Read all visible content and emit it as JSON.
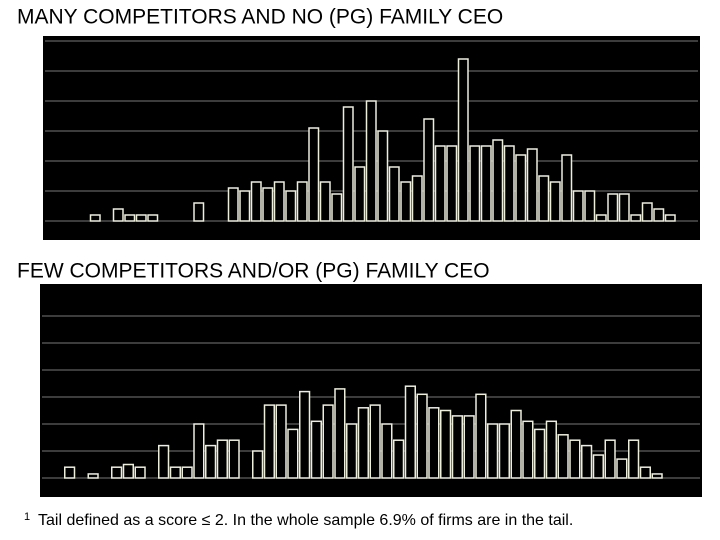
{
  "chart_data": [
    {
      "type": "bar",
      "title": "MANY COMPETITORS AND NO (PG) FAMILY CEO",
      "values": [
        0,
        0,
        0,
        0.2,
        0,
        0.4,
        0.2,
        0.2,
        0.2,
        0,
        0,
        0,
        0.6,
        0,
        0,
        1.1,
        1.0,
        1.3,
        1.1,
        1.3,
        1.0,
        1.3,
        3.1,
        1.3,
        0.9,
        3.8,
        1.8,
        4.0,
        3.0,
        1.8,
        1.3,
        1.5,
        3.4,
        2.5,
        2.5,
        5.4,
        2.5,
        2.5,
        2.7,
        2.5,
        2.2,
        2.4,
        1.5,
        1.3,
        2.2,
        1.0,
        1.0,
        0.2,
        0.9,
        0.9,
        0.2,
        0.6,
        0.4,
        0.2
      ],
      "color": "#eeeedd",
      "ylim": [
        0,
        6
      ],
      "yticks": [
        0,
        1,
        2,
        3,
        4,
        5,
        6
      ],
      "grid": true
    },
    {
      "type": "bar",
      "title": "FEW COMPETITORS AND/OR (PG) FAMILY CEO",
      "values": [
        0,
        0.4,
        0,
        0.15,
        0,
        0.4,
        0.5,
        0.4,
        0,
        1.2,
        0.4,
        0.4,
        2.0,
        1.2,
        1.4,
        1.4,
        0,
        1.0,
        2.7,
        2.7,
        1.8,
        3.2,
        2.1,
        2.7,
        3.3,
        2.0,
        2.6,
        2.7,
        2.0,
        1.4,
        3.4,
        3.1,
        2.6,
        2.5,
        2.3,
        2.3,
        3.1,
        2.0,
        2.0,
        2.5,
        2.1,
        1.8,
        2.1,
        1.6,
        1.4,
        1.2,
        0.85,
        1.4,
        0.7,
        1.4,
        0.4,
        0.15
      ],
      "color": "#eeeedd",
      "ylim": [
        0,
        6
      ],
      "yticks": [
        0,
        1,
        2,
        3,
        4,
        5,
        6
      ],
      "grid": true
    }
  ],
  "footnote": {
    "marker": "1",
    "text": "Tail defined as a score ≤ 2. In the whole sample 6.9% of firms are in the tail."
  }
}
